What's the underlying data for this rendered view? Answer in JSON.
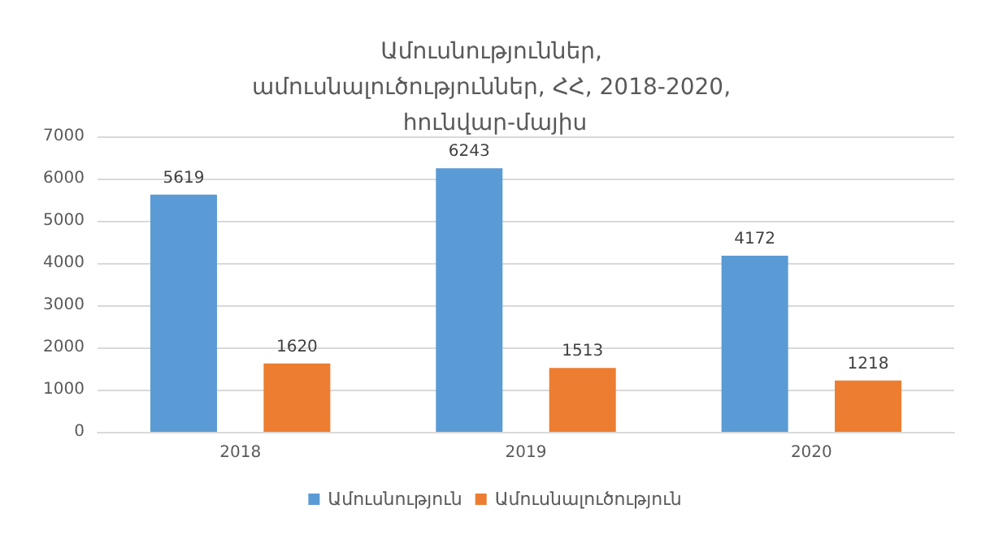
{
  "chart_data": {
    "type": "bar",
    "title": "Ամուսնություններ, ամուսնալուծություններ, ՀՀ, 2018-2020, հունվար-մայիս",
    "categories": [
      "2018",
      "2019",
      "2020"
    ],
    "series": [
      {
        "name": "Ամուսնություն",
        "color": "#5b9bd5",
        "values": [
          5619,
          6243,
          4172
        ]
      },
      {
        "name": "Ամուսնալուծություն",
        "color": "#ed7d31",
        "values": [
          1620,
          1513,
          1218
        ]
      }
    ],
    "ylim": [
      0,
      7000
    ],
    "yticks": [
      0,
      1000,
      2000,
      3000,
      4000,
      5000,
      6000,
      7000
    ],
    "grid": "y",
    "legend": "bottom",
    "data_labels": true
  }
}
